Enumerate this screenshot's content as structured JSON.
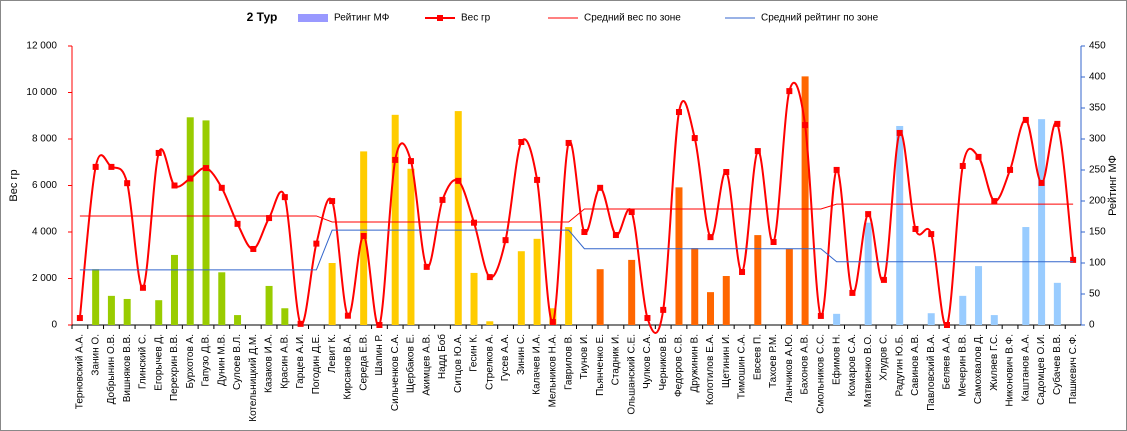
{
  "chart_data": {
    "type": "combo",
    "title": "2 Тур",
    "y_label": "Вес гр",
    "y2_label": "Рейтинг МФ",
    "categories": [
      "Терновский А.А.",
      "Занин О.",
      "Добрынин О.В.",
      "Вишняков В.В.",
      "Глинский С.",
      "Егорычев Д.",
      "Перехрин В.В.",
      "Бурхотов А.",
      "Гапузо Д.В.",
      "Дунин М.В.",
      "Сулоев В.Л.",
      "Котельницкий Д.М.",
      "Казаков И.А.",
      "Красин А.В.",
      "Гарцев А.И.",
      "Погодин Д.Е.",
      "Левит К.",
      "Кирсанов В.А.",
      "Середа Е.В.",
      "Шапин Р.",
      "Сильченков С.А.",
      "Щербаков Е.",
      "Акимцев А.В.",
      "Надд Боб",
      "Ситцов Ю.А.",
      "Гесин К.",
      "Стрелков А.",
      "Гусев А.А.",
      "Зинин С.",
      "Калачев И.А.",
      "Мельников Н.А.",
      "Гаврилов В.",
      "Тиунов И.",
      "Пьянченко Е.",
      "Стадник И.",
      "Ольшанский С.Е.",
      "Чулков С.А.",
      "Черников В.",
      "Федоров С.В.",
      "Дружинин В.",
      "Колотилов Е.А.",
      "Щетинин И.",
      "Тимошин С.А.",
      "Евсеев П.",
      "Тахоев Р.М.",
      "Ланчиков А.Ю.",
      "Бахонов А.В.",
      "Смольников С.С.",
      "Ефимов Н.",
      "Комаров С.А.",
      "Матвиенко В.О.",
      "Хлудов С.",
      "Радугин Ю.Б.",
      "Савинов А.В.",
      "Павловский В.А.",
      "Беляев А.А.",
      "Мечерин В.В.",
      "Самохвалов Д.",
      "Жиляев Г.С.",
      "Никонович В.Ф.",
      "Каштанов А.А.",
      "Садомцев О.И.",
      "Субачев В.В.",
      "Пашкевич С.Ф."
    ],
    "series": [
      {
        "name": "Рейтинг МФ",
        "type": "bar",
        "axis": "y2",
        "color": "#9999ff",
        "point_colors": [
          "#99cc00",
          "#99cc00",
          "#99cc00",
          "#99cc00",
          "#99cc00",
          "#99cc00",
          "#99cc00",
          "#99cc00",
          "#99cc00",
          "#99cc00",
          "#99cc00",
          "#99cc00",
          "#99cc00",
          "#99cc00",
          "#99cc00",
          "#99cc00",
          "#ffcc00",
          "#ffcc00",
          "#ffcc00",
          "#ffcc00",
          "#ffcc00",
          "#ffcc00",
          "#ffcc00",
          "#ffcc00",
          "#ffcc00",
          "#ffcc00",
          "#ffcc00",
          "#ffcc00",
          "#ffcc00",
          "#ffcc00",
          "#ffcc00",
          "#ffcc00",
          "#ff6600",
          "#ff6600",
          "#ff6600",
          "#ff6600",
          "#ff6600",
          "#ff6600",
          "#ff6600",
          "#ff6600",
          "#ff6600",
          "#ff6600",
          "#ff6600",
          "#ff6600",
          "#ff6600",
          "#ff6600",
          "#ff6600",
          "#ff6600",
          "#99ccff",
          "#99ccff",
          "#99ccff",
          "#99ccff",
          "#99ccff",
          "#99ccff",
          "#99ccff",
          "#99ccff",
          "#99ccff",
          "#99ccff",
          "#99ccff",
          "#99ccff",
          "#99ccff",
          "#99ccff",
          "#99ccff",
          "#99ccff"
        ],
        "values": [
          0,
          90,
          47,
          42,
          0,
          40,
          113,
          335,
          330,
          85,
          16,
          0,
          63,
          27,
          0,
          0,
          100,
          0,
          280,
          0,
          339,
          252,
          0,
          0,
          345,
          84,
          6,
          0,
          119,
          139,
          27,
          158,
          0,
          90,
          0,
          105,
          0,
          0,
          222,
          124,
          53,
          79,
          0,
          145,
          0,
          123,
          401,
          0,
          18,
          0,
          165,
          0,
          321,
          0,
          19,
          0,
          47,
          95,
          16,
          0,
          158,
          332,
          68,
          0
        ]
      },
      {
        "name": "Вес гр",
        "type": "line",
        "smooth": true,
        "marker": "square",
        "color": "#ff0000",
        "values": [
          300,
          6800,
          6800,
          6100,
          1600,
          7400,
          6000,
          6300,
          6750,
          5900,
          4350,
          3270,
          4600,
          5500,
          50,
          3500,
          5330,
          400,
          3830,
          0,
          7100,
          7050,
          2500,
          5380,
          6200,
          4400,
          2060,
          3650,
          7870,
          6240,
          130,
          7830,
          4000,
          5900,
          3870,
          4860,
          300,
          650,
          9160,
          8040,
          3780,
          6580,
          2280,
          7480,
          3570,
          10060,
          8600,
          390,
          6670,
          1380,
          4770,
          1940,
          8260,
          4130,
          3910,
          0,
          6840,
          7230,
          5330,
          6670,
          8820,
          6110,
          8650,
          2800
        ]
      },
      {
        "name": "Средний вес по зоне",
        "type": "line",
        "color": "#ff0000",
        "values": [
          4690,
          4690,
          4690,
          4690,
          4690,
          4690,
          4690,
          4690,
          4690,
          4690,
          4690,
          4690,
          4690,
          4690,
          4690,
          4690,
          4430,
          4430,
          4430,
          4430,
          4430,
          4430,
          4430,
          4430,
          4430,
          4430,
          4430,
          4430,
          4430,
          4430,
          4430,
          4430,
          4990,
          4990,
          4990,
          4990,
          4990,
          4990,
          4990,
          4990,
          4990,
          4990,
          4990,
          4990,
          4990,
          4990,
          4990,
          4990,
          5200,
          5200,
          5200,
          5200,
          5200,
          5200,
          5200,
          5200,
          5200,
          5200,
          5200,
          5200,
          5200,
          5200,
          5200,
          5200
        ]
      },
      {
        "name": "Средний рейтинг по зоне",
        "type": "line",
        "axis": "y2",
        "color": "#3366cc",
        "values": [
          89,
          89,
          89,
          89,
          89,
          89,
          89,
          89,
          89,
          89,
          89,
          89,
          89,
          89,
          89,
          89,
          153,
          153,
          153,
          153,
          153,
          153,
          153,
          153,
          153,
          153,
          153,
          153,
          153,
          153,
          153,
          153,
          123,
          123,
          123,
          123,
          123,
          123,
          123,
          123,
          123,
          123,
          123,
          123,
          123,
          123,
          123,
          123,
          102,
          102,
          102,
          102,
          102,
          102,
          102,
          102,
          102,
          102,
          102,
          102,
          102,
          102,
          102,
          102
        ]
      }
    ],
    "ylim": [
      0,
      12000
    ],
    "yticks": [
      0,
      {
        "value": 2000,
        "label": "2 000"
      },
      {
        "value": 4000,
        "label": "4 000"
      },
      {
        "value": 6000,
        "label": "6 000"
      },
      {
        "value": 8000,
        "label": "8 000"
      },
      {
        "value": 10000,
        "label": "10 000"
      },
      {
        "value": 12000,
        "label": "12 000"
      }
    ],
    "y2lim": [
      0,
      450
    ],
    "y2ticks": [
      0,
      50,
      100,
      150,
      200,
      250,
      300,
      350,
      400,
      450
    ],
    "y_color": "#ff0000",
    "y2_color": "#3366cc"
  }
}
